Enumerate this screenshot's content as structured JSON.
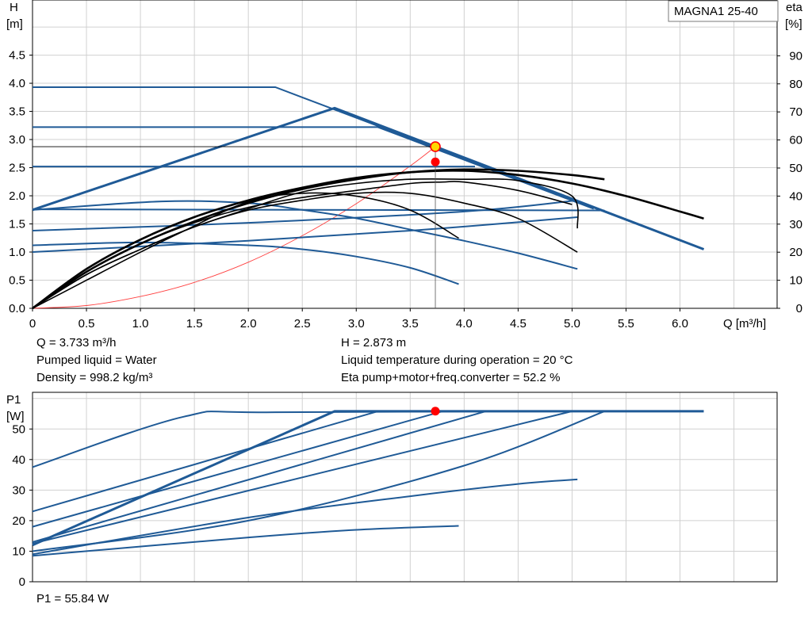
{
  "chart_data": [
    {
      "type": "line",
      "model_label": "MAGNA1 25-40",
      "y_axis": {
        "title": "H",
        "unit": "[m]",
        "range": [
          0,
          5
        ],
        "ticks": [
          "0.0",
          "0.5",
          "1.0",
          "1.5",
          "2.0",
          "2.5",
          "3.0",
          "3.5",
          "4.0",
          "4.5"
        ]
      },
      "y2_axis": {
        "title": "eta",
        "unit": "[%]",
        "range": [
          0,
          100
        ],
        "ticks": [
          "0",
          "10",
          "20",
          "30",
          "40",
          "50",
          "60",
          "70",
          "80",
          "90"
        ]
      },
      "x_axis": {
        "title": "Q [m³/h]",
        "range": [
          0,
          6.9
        ],
        "ticks": [
          "0",
          "0.5",
          "1.0",
          "1.5",
          "2.0",
          "2.5",
          "3.0",
          "3.5",
          "4.0",
          "4.5",
          "5.0",
          "5.5",
          "6.0"
        ]
      },
      "grid": true,
      "pump_curves": [
        {
          "points": [
            [
              0,
              3.93
            ],
            [
              2.25,
              3.93
            ],
            [
              6.22,
              1.05
            ]
          ]
        },
        {
          "points": [
            [
              0,
              3.22
            ],
            [
              3.2,
              3.22
            ],
            [
              5.2,
              1.77
            ]
          ]
        },
        {
          "points": [
            [
              0,
              2.52
            ],
            [
              4.1,
              2.52
            ]
          ]
        },
        {
          "points": [
            [
              0,
              1.76
            ],
            [
              5.3,
              1.74
            ]
          ]
        },
        {
          "points": [
            [
              0,
              1.75
            ],
            [
              1.2,
              1.9
            ],
            [
              2.0,
              1.87
            ],
            [
              2.5,
              1.75
            ],
            [
              3.0,
              1.6
            ],
            [
              3.5,
              1.4
            ],
            [
              4.0,
              1.2
            ],
            [
              4.5,
              0.98
            ],
            [
              5.05,
              0.7
            ]
          ]
        },
        {
          "points": [
            [
              0,
              1.38
            ],
            [
              2.0,
              1.52
            ],
            [
              4.0,
              1.72
            ],
            [
              5.05,
              1.92
            ]
          ]
        },
        {
          "points": [
            [
              0,
              1.0
            ],
            [
              2.0,
              1.2
            ],
            [
              3.5,
              1.38
            ],
            [
              4.5,
              1.53
            ],
            [
              5.05,
              1.62
            ]
          ]
        },
        {
          "points": [
            [
              0,
              1.12
            ],
            [
              1.0,
              1.17
            ],
            [
              2.0,
              1.12
            ],
            [
              2.5,
              1.05
            ],
            [
              3.0,
              0.92
            ],
            [
              3.5,
              0.72
            ],
            [
              3.95,
              0.43
            ]
          ]
        }
      ],
      "bold_pump_curve": {
        "points": [
          [
            0,
            1.75
          ],
          [
            2.8,
            3.56
          ],
          [
            6.22,
            1.05
          ]
        ]
      },
      "eta_curves": [
        {
          "points": [
            [
              0,
              0
            ],
            [
              0.5,
              14
            ],
            [
              1.0,
              24.5
            ],
            [
              1.5,
              32.5
            ],
            [
              2.0,
              38.5
            ],
            [
              2.5,
              43
            ],
            [
              3.0,
              46.5
            ],
            [
              3.5,
              48.5
            ],
            [
              4.0,
              49
            ],
            [
              4.5,
              47.5
            ],
            [
              5.0,
              44.5
            ],
            [
              5.5,
              40
            ],
            [
              6.0,
              34.5
            ],
            [
              6.22,
              32
            ]
          ]
        },
        {
          "points": [
            [
              0,
              0
            ],
            [
              0.5,
              13
            ],
            [
              1.0,
              23
            ],
            [
              1.5,
              31
            ],
            [
              2.0,
              37.5
            ],
            [
              2.5,
              42.5
            ],
            [
              3.0,
              46
            ],
            [
              3.5,
              48.5
            ],
            [
              4.0,
              49.5
            ],
            [
              4.5,
              49
            ],
            [
              5.0,
              47.5
            ],
            [
              5.3,
              46
            ]
          ]
        },
        {
          "points": [
            [
              0,
              0
            ],
            [
              0.5,
              13
            ],
            [
              1.0,
              23
            ],
            [
              1.5,
              30.5
            ],
            [
              2.0,
              36
            ],
            [
              2.5,
              39.5
            ],
            [
              3.0,
              42
            ],
            [
              3.5,
              44.5
            ],
            [
              3.8,
              45
            ],
            [
              4.0,
              45
            ],
            [
              4.5,
              42
            ],
            [
              5.0,
              37
            ]
          ]
        },
        {
          "points": [
            [
              0,
              0
            ],
            [
              0.5,
              10
            ],
            [
              1.0,
              20
            ],
            [
              1.4,
              27.5
            ],
            [
              2.0,
              38
            ],
            [
              2.5,
              41
            ],
            [
              3.0,
              40
            ],
            [
              3.5,
              35
            ],
            [
              3.95,
              25
            ]
          ]
        },
        {
          "points": [
            [
              0,
              0
            ],
            [
              0.5,
              12
            ],
            [
              1.0,
              21
            ],
            [
              1.5,
              29
            ],
            [
              2.0,
              35.5
            ],
            [
              2.5,
              41.5
            ],
            [
              3.0,
              44.5
            ],
            [
              3.5,
              46
            ],
            [
              4.0,
              46
            ],
            [
              4.5,
              45.5
            ],
            [
              5.0,
              40
            ],
            [
              5.05,
              28.5
            ]
          ]
        },
        {
          "points": [
            [
              0,
              0
            ],
            [
              0.5,
              12
            ],
            [
              1.0,
              21
            ],
            [
              1.5,
              29
            ],
            [
              2.0,
              35
            ],
            [
              2.5,
              38.5
            ],
            [
              3.0,
              41
            ],
            [
              3.5,
              41
            ],
            [
              4.0,
              37.5
            ],
            [
              4.5,
              32
            ],
            [
              5.05,
              20
            ]
          ]
        }
      ],
      "system_curve": {
        "points": [
          [
            0,
            0
          ],
          [
            0.5,
            0.05
          ],
          [
            1.0,
            0.21
          ],
          [
            1.5,
            0.46
          ],
          [
            2.0,
            0.82
          ],
          [
            2.5,
            1.29
          ],
          [
            3.0,
            1.86
          ],
          [
            3.5,
            2.53
          ],
          [
            3.733,
            2.873
          ]
        ]
      },
      "operating_point": {
        "q": 3.733,
        "h": 2.873,
        "eta": 52.2
      }
    },
    {
      "type": "line",
      "y_axis": {
        "title": "P1",
        "unit": "[W]",
        "range": [
          0,
          62
        ],
        "ticks": [
          "0",
          "10",
          "20",
          "30",
          "40",
          "50"
        ]
      },
      "x_axis": {
        "range": [
          0,
          6.9
        ]
      },
      "grid": true,
      "curves": [
        {
          "points": [
            [
              0,
              37.5
            ],
            [
              1.4,
              54
            ],
            [
              2.25,
              55.5
            ],
            [
              6.22,
              55.8
            ]
          ]
        },
        {
          "points": [
            [
              0,
              12
            ],
            [
              2.8,
              55.8
            ],
            [
              6.22,
              55.8
            ]
          ]
        },
        {
          "points": [
            [
              0,
              23
            ],
            [
              3.2,
              55.8
            ]
          ]
        },
        {
          "points": [
            [
              0,
              18
            ],
            [
              3.8,
              55.8
            ]
          ]
        },
        {
          "points": [
            [
              0,
              13
            ],
            [
              4.2,
              55.8
            ]
          ]
        },
        {
          "points": [
            [
              0,
              12.5
            ],
            [
              5.0,
              55.8
            ]
          ]
        },
        {
          "points": [
            [
              0,
              10
            ],
            [
              2.0,
              20
            ],
            [
              4.0,
              38
            ],
            [
              5.3,
              55.8
            ]
          ]
        },
        {
          "points": [
            [
              0,
              9
            ],
            [
              2.0,
              21
            ],
            [
              3.5,
              28
            ],
            [
              4.5,
              32
            ],
            [
              5.05,
              33.5
            ]
          ]
        },
        {
          "points": [
            [
              0,
              8.5
            ],
            [
              2.0,
              14.5
            ],
            [
              3.0,
              17
            ],
            [
              3.95,
              18.3
            ]
          ]
        }
      ],
      "operating_point": {
        "q": 3.733,
        "p1": 55.84
      }
    }
  ],
  "info": {
    "q": "Q = 3.733 m³/h",
    "pumped_liquid": "Pumped liquid = Water",
    "density": "Density = 998.2 kg/m³",
    "h": "H = 2.873 m",
    "liquid_temp": "Liquid temperature during operation = 20 °C",
    "eta_total": "Eta pump+motor+freq.converter = 52.2 %",
    "p1": "P1 = 55.84 W"
  },
  "colors": {
    "pump": "#1f5a96",
    "eta": "#000000",
    "system": "#ff4040",
    "grid": "#d0d0d0",
    "marker": "#ff0000",
    "marker_ring": "#ffd700"
  }
}
